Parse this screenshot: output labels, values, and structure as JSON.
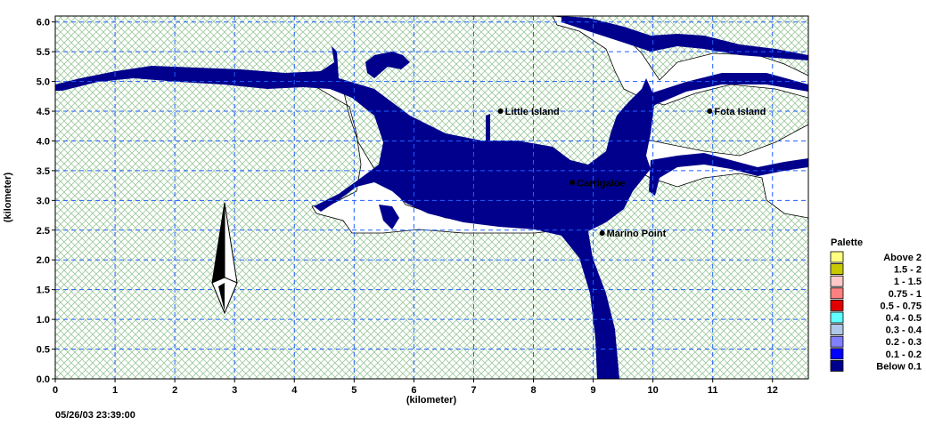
{
  "map": {
    "x_axis": {
      "title": "(kilometer)",
      "min": 0,
      "max": 12.6,
      "ticks": [
        0,
        1,
        2,
        3,
        4,
        5,
        6,
        7,
        8,
        9,
        10,
        11,
        12
      ],
      "tick_labels": [
        "0",
        "1",
        "2",
        "3",
        "4",
        "5",
        "6",
        "7",
        "8",
        "9",
        "10",
        "11",
        "12"
      ]
    },
    "y_axis": {
      "title": "(kilometer)",
      "min": 0,
      "max": 6.1,
      "ticks": [
        0,
        0.5,
        1,
        1.5,
        2,
        2.5,
        3,
        3.5,
        4,
        4.5,
        5,
        5.5,
        6
      ],
      "tick_labels": [
        "0.0",
        "0.5",
        "1.0",
        "1.5",
        "2.0",
        "2.5",
        "3.0",
        "3.5",
        "4.0",
        "4.5",
        "5.0",
        "5.5",
        "6.0"
      ]
    },
    "grid": true,
    "land_color": "#b9dcb9",
    "water_color": "#00008c",
    "dry_color": "#ffffff",
    "places": [
      {
        "name": "Little Island",
        "x": 7.45,
        "y": 4.5
      },
      {
        "name": "Fota Island",
        "x": 10.95,
        "y": 4.5
      },
      {
        "name": "Carrigaloe",
        "x": 8.65,
        "y": 3.3
      },
      {
        "name": "Marino Point",
        "x": 9.15,
        "y": 2.45
      }
    ],
    "north_arrow": true,
    "timestamp": "05/26/03 23:39:00"
  },
  "legend": {
    "title": "Palette",
    "items": [
      {
        "label": "Above   2",
        "color": "#ffff80"
      },
      {
        "label": "1.5 -   2",
        "color": "#c8c800"
      },
      {
        "label": "1 -   1.5",
        "color": "#ffc8c8"
      },
      {
        "label": "0.75 -   1",
        "color": "#ff8080"
      },
      {
        "label": "0.5 - 0.75",
        "color": "#e00000"
      },
      {
        "label": "0.4 -   0.5",
        "color": "#60ffff"
      },
      {
        "label": "0.3 -   0.4",
        "color": "#b0c8e8"
      },
      {
        "label": "0.2 -   0.3",
        "color": "#8080ff"
      },
      {
        "label": "0.1 -   0.2",
        "color": "#0000ff"
      },
      {
        "label": "Below   0.1",
        "color": "#00008c"
      }
    ]
  }
}
